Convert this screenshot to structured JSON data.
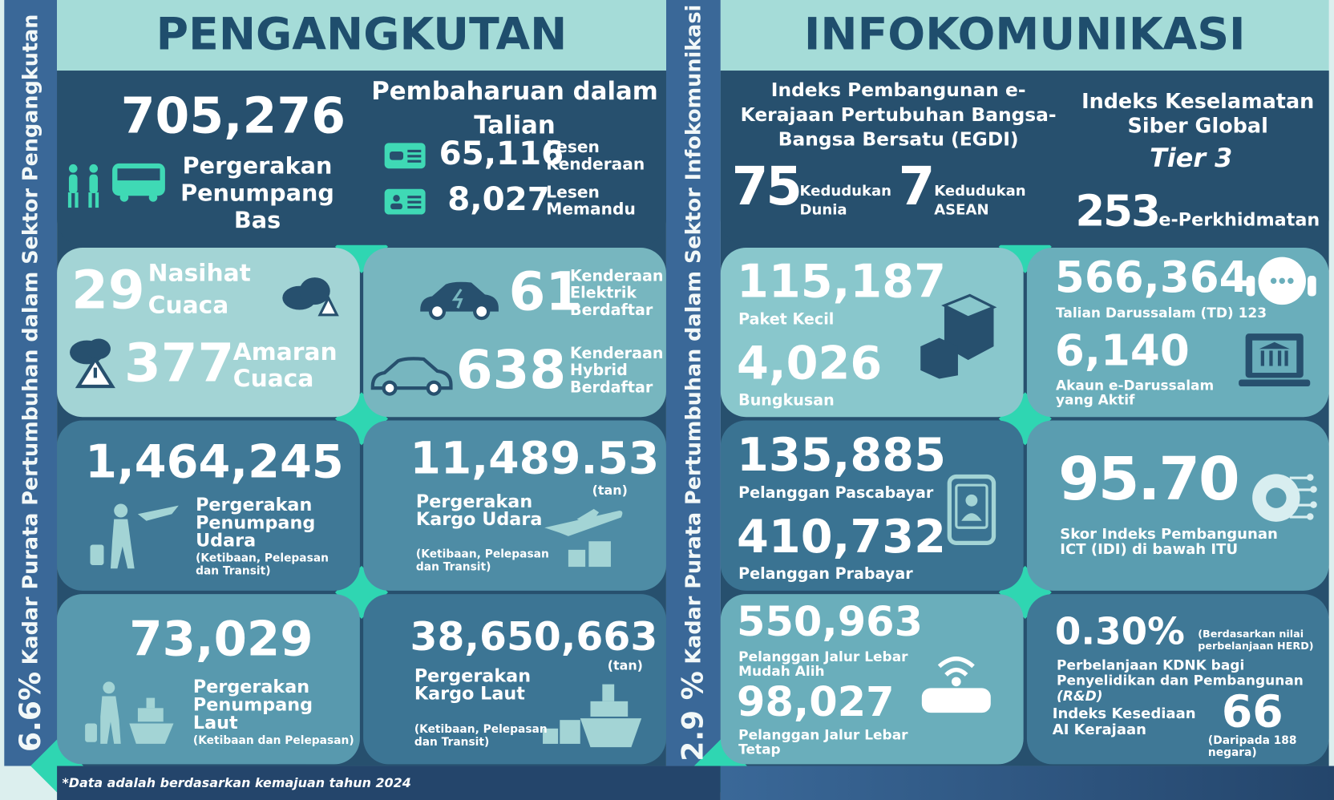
{
  "sidebars": {
    "transport": {
      "value": "6.6%",
      "label": "Kadar Purata Pertumbuhan dalam Sektor Pengangkutan"
    },
    "ict": {
      "value": "2.9 %",
      "label": "Kadar Purata Pertumbuhan dalam Sektor Infokomunikasi"
    }
  },
  "transport": {
    "title": "PENGANGKUTAN",
    "bus": {
      "value": "705,276",
      "label": "Pergerakan Penumpang Bas"
    },
    "online": {
      "title": "Pembaharuan dalam Talian",
      "items": [
        {
          "value": "65,116",
          "label": "Lesen Kenderaan"
        },
        {
          "value": "8,027",
          "label": "Lesen Memandu"
        }
      ]
    },
    "weather": [
      {
        "value": "29",
        "label": "Nasihat Cuaca"
      },
      {
        "value": "377",
        "label": "Amaran Cuaca"
      }
    ],
    "vehicles": [
      {
        "value": "61",
        "label": "Kenderaan Elektrik Berdaftar"
      },
      {
        "value": "638",
        "label": "Kenderaan Hybrid Berdaftar"
      }
    ],
    "air_passengers": {
      "value": "1,464,245",
      "label": "Pergerakan Penumpang Udara",
      "note": "(Ketibaan, Pelepasan dan Transit)"
    },
    "air_cargo": {
      "value": "11,489.53",
      "unit": "(tan)",
      "label": "Pergerakan Kargo Udara",
      "note": "(Ketibaan, Pelepasan dan Transit)"
    },
    "sea_passengers": {
      "value": "73,029",
      "label": "Pergerakan Penumpang Laut",
      "note": "(Ketibaan dan Pelepasan)"
    },
    "sea_cargo": {
      "value": "38,650,663",
      "unit": "(tan)",
      "label": "Pergerakan Kargo Laut",
      "note": "(Ketibaan, Pelepasan dan Transit)"
    }
  },
  "ict": {
    "title": "INFOKOMUNIKASI",
    "egdi": {
      "title": "Indeks Pembangunan e-Kerajaan Pertubuhan Bangsa-Bangsa Bersatu (EGDI)",
      "items": [
        {
          "value": "75",
          "label": "Kedudukan Dunia"
        },
        {
          "value": "7",
          "label": "Kedudukan ASEAN"
        }
      ]
    },
    "cyber": {
      "title": "Indeks Keselamatan Siber Global",
      "tier": "Tier 3",
      "value": "253",
      "label": "e-Perkhidmatan"
    },
    "post": [
      {
        "value": "115,187",
        "label": "Paket Kecil"
      },
      {
        "value": "4,026",
        "label": "Bungkusan"
      }
    ],
    "services": [
      {
        "value": "566,364",
        "label": "Talian Darussalam (TD) 123"
      },
      {
        "value": "6,140",
        "label": "Akaun e-Darussalam yang Aktif"
      }
    ],
    "mobile": [
      {
        "value": "135,885",
        "label": "Pelanggan Pascabayar"
      },
      {
        "value": "410,732",
        "label": "Pelanggan Prabayar"
      }
    ],
    "idi": {
      "value": "95.70",
      "label": "Skor Indeks Pembangunan ICT (IDI) di bawah ITU"
    },
    "broadband": [
      {
        "value": "550,963",
        "label": "Pelanggan Jalur Lebar Mudah Alih"
      },
      {
        "value": "98,027",
        "label": "Pelanggan Jalur Lebar Tetap"
      }
    ],
    "rnd": {
      "value": "0.30%",
      "note": "(Berdasarkan nilai perbelanjaan HERD)",
      "label": "Perbelanjaan KDNK bagi Penyelidikan dan Pembangunan",
      "label_em": "(R&D)"
    },
    "ai": {
      "label": "Indeks Kesediaan AI Kerajaan",
      "value": "66",
      "note": "(Daripada 188 negara)"
    }
  },
  "footnote": "*Data adalah berdasarkan kemajuan tahun 2024"
}
